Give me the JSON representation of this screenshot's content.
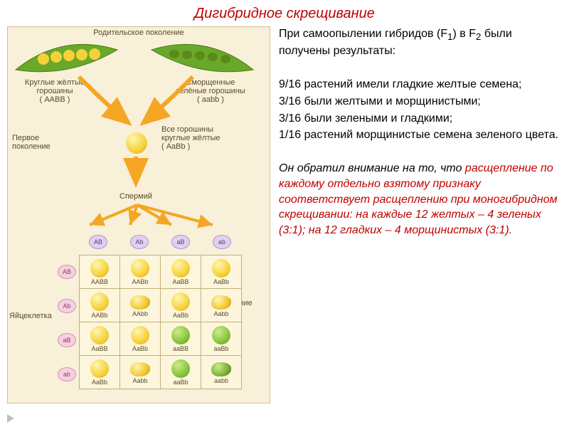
{
  "title": "Дигибридное скрещивание",
  "right_text": {
    "intro1": "При самоопылении гибридов (F",
    "sub1": "1",
    "intro2": ") в F",
    "sub2": "2",
    "intro3": " были получены результаты:",
    "l1": "9/16 растений имели гладкие желтые семена;",
    "l2": "3/16 были желтыми и морщинистыми;",
    "l3": "3/16 были зелеными и гладкими;",
    "l4": "1/16 растений морщинистые семена зеленого цвета.",
    "emph1": "Он обратил внимание на то, что ",
    "emph_hl": "расщепление по каждому отдельно взятому признаку соответствует расщеплению при моногибридном скрещивании: на каждые 12 желтых – 4 зеленых (3:1); на 12 гладких – 4 морщинистых (3:1)."
  },
  "diagram": {
    "parent_gen": "Родительское поколение",
    "left_parent_l1": "Круглые жёлтые",
    "left_parent_l2": "горошины",
    "left_parent_g": "( AABB )",
    "right_parent_l1": "Сморщенные",
    "right_parent_l2": "зелёные горошины",
    "right_parent_g": "( aabb )",
    "first_gen": "Первое поколение",
    "f1_l1": "Все горошины",
    "f1_l2": "круглые жёлтые",
    "f1_g": "( AaBb )",
    "sperm": "Спермий",
    "egg": "Яйцеклетка",
    "second_gen": "Второе поколение",
    "sperm_gametes": [
      "AB",
      "Ab",
      "aB",
      "ab"
    ],
    "egg_gametes": [
      "AB",
      "Ab",
      "aB",
      "ab"
    ],
    "punnett": [
      [
        {
          "g": "AABB",
          "p": "y"
        },
        {
          "g": "AABb",
          "p": "y"
        },
        {
          "g": "AaBB",
          "p": "y"
        },
        {
          "g": "AaBb",
          "p": "y"
        }
      ],
      [
        {
          "g": "AABb",
          "p": "y"
        },
        {
          "g": "AAbb",
          "p": "wy"
        },
        {
          "g": "AaBb",
          "p": "y"
        },
        {
          "g": "Aabb",
          "p": "wy"
        }
      ],
      [
        {
          "g": "AaBB",
          "p": "y"
        },
        {
          "g": "AaBb",
          "p": "y"
        },
        {
          "g": "aaBB",
          "p": "g"
        },
        {
          "g": "aaBb",
          "p": "g"
        }
      ],
      [
        {
          "g": "AaBb",
          "p": "y"
        },
        {
          "g": "Aabb",
          "p": "wy"
        },
        {
          "g": "aaBb",
          "p": "g"
        },
        {
          "g": "aabb",
          "p": "wg"
        }
      ]
    ],
    "colors": {
      "yellow": "#f6d23a",
      "green": "#88c440",
      "arrow": "#f5a623",
      "panel_bg": "#f8f0d8"
    }
  }
}
